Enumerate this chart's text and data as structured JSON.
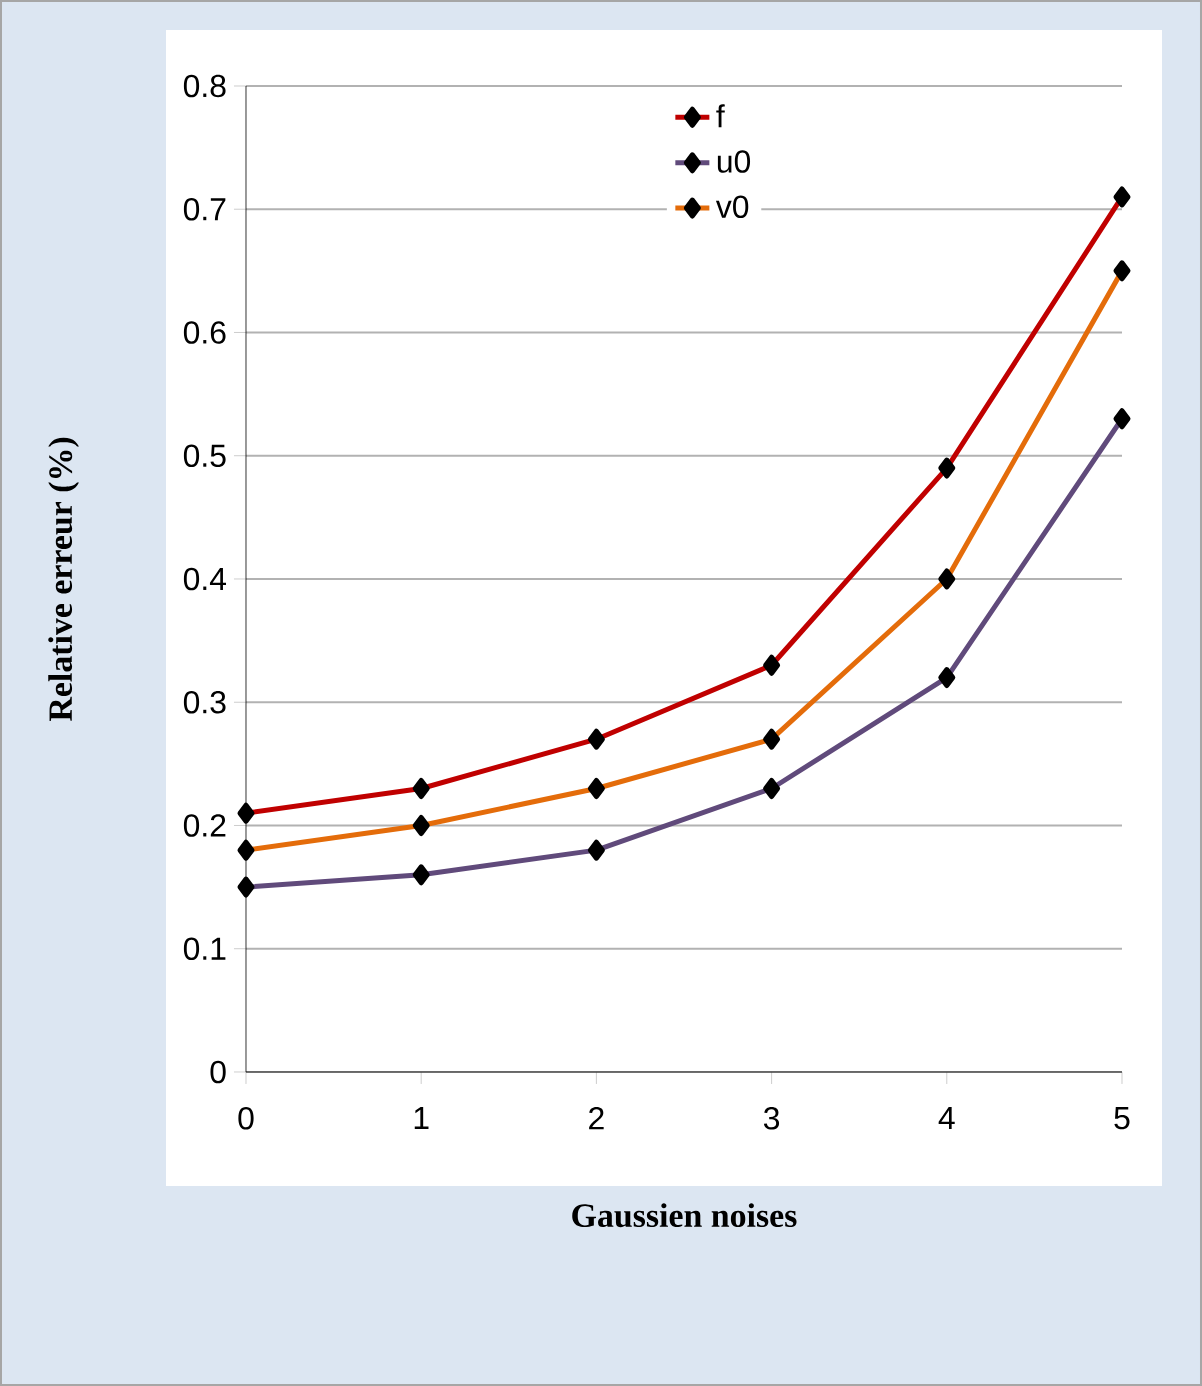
{
  "chart_data": {
    "type": "line",
    "xlabel": "Gaussien noises",
    "ylabel": "Relative erreur (%)",
    "x": [
      0,
      1,
      2,
      3,
      4,
      5
    ],
    "series": [
      {
        "name": "f",
        "color": "#c00000",
        "values": [
          0.21,
          0.23,
          0.27,
          0.33,
          0.49,
          0.71
        ]
      },
      {
        "name": "u0",
        "color": "#604a7b",
        "values": [
          0.15,
          0.16,
          0.18,
          0.23,
          0.32,
          0.53
        ]
      },
      {
        "name": "v0",
        "color": "#e46c0a",
        "values": [
          0.18,
          0.2,
          0.23,
          0.27,
          0.4,
          0.65
        ]
      }
    ],
    "xlim": [
      0,
      5
    ],
    "xticks": [
      0,
      1,
      2,
      3,
      4,
      5
    ],
    "ylim": [
      0,
      0.8
    ],
    "yticks": [
      0,
      0.1,
      0.2,
      0.3,
      0.4,
      0.5,
      0.6,
      0.7,
      0.8
    ],
    "grid": "y",
    "legend": "top",
    "marker": "diamond",
    "line_style": "solid"
  }
}
